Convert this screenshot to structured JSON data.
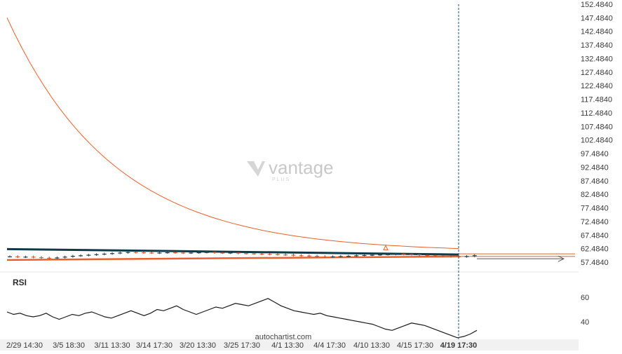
{
  "brand": {
    "watermark": "vantage",
    "watermark_sub": "PLUS",
    "credit": "autochartist.com"
  },
  "colors": {
    "accent": "#e8602c",
    "resistance": "#0d3b4a",
    "rsi": "#1a1a1a",
    "cursor": "#1f4e79"
  },
  "chart_data": [
    {
      "type": "candlestick",
      "title": "",
      "ylim": [
        57.484,
        152.484
      ],
      "yticks": [
        "152.4840",
        "147.4840",
        "142.4840",
        "137.4840",
        "132.4840",
        "127.4840",
        "122.4840",
        "117.4840",
        "112.4840",
        "107.4840",
        "102.4840",
        "97.4840",
        "92.4840",
        "87.4840",
        "82.4840",
        "77.4840",
        "72.4840",
        "67.4840",
        "62.4840",
        "57.4840"
      ],
      "x_labels": [
        "2/29 14:30",
        "3/5 18:30",
        "3/11 13:30",
        "3/14 17:30",
        "3/20 13:30",
        "3/25 17:30",
        "4/1 13:30",
        "4/4 17:30",
        "4/10 13:30",
        "4/15 17:30",
        "4/19 17:30"
      ],
      "current_label": "4/19 17:30",
      "price_closes": [
        59.6,
        59.4,
        59.5,
        59.3,
        59.1,
        59.0,
        59.2,
        59.5,
        59.8,
        60.0,
        60.2,
        60.4,
        60.6,
        60.8,
        61.0,
        61.2,
        61.1,
        61.0,
        60.9,
        61.0,
        61.1,
        61.0,
        60.9,
        61.0,
        61.1,
        61.2,
        61.0,
        60.9,
        61.0,
        60.8,
        60.7,
        60.6,
        60.5,
        60.4,
        60.3,
        60.2,
        60.0,
        59.9,
        59.8,
        59.6,
        59.5,
        59.6,
        59.7,
        59.8,
        60.0,
        60.1,
        60.2,
        60.3,
        60.4,
        60.5,
        60.4,
        60.3,
        60.1,
        60.0,
        59.9,
        59.8,
        59.6,
        59.5,
        59.7,
        60.0
      ],
      "curve_start": 147.5,
      "curve_end": 61.2,
      "resistance_line": [
        62.3,
        60.3
      ],
      "support_line": [
        58.3,
        59.6
      ],
      "forecast_range": [
        60.8,
        58.8
      ],
      "marker_price": 62.8
    },
    {
      "type": "line",
      "label": "RSI",
      "ylim": [
        20,
        70
      ],
      "yticks": [
        60,
        40
      ],
      "values": [
        48,
        46,
        47,
        45,
        44,
        45,
        47,
        44,
        42,
        44,
        46,
        45,
        47,
        48,
        46,
        44,
        43,
        45,
        47,
        49,
        47,
        45,
        47,
        50,
        49,
        51,
        53,
        50,
        48,
        46,
        48,
        50,
        52,
        51,
        53,
        55,
        54,
        53,
        55,
        57,
        59,
        56,
        53,
        51,
        49,
        48,
        47,
        46,
        47,
        45,
        44,
        43,
        42,
        41,
        40,
        39,
        38,
        36,
        34,
        33,
        35,
        37,
        39,
        38,
        37,
        35,
        33,
        31,
        29,
        27,
        28,
        30,
        33
      ]
    }
  ]
}
